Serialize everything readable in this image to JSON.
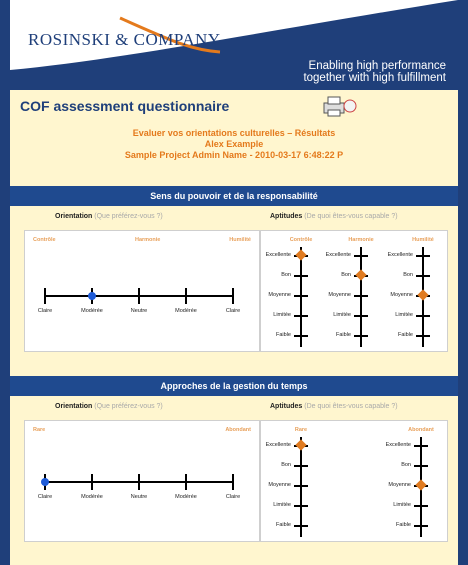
{
  "header": {
    "logo": "ROSINSKI & COMPANY",
    "tagline_line1": "Enabling high performance",
    "tagline_line2": "together with high fulfillment",
    "colors": {
      "navy": "#1f3f7a",
      "orange": "#e47a1c"
    }
  },
  "page": {
    "title": "COF assessment questionnaire",
    "print_icon": "printer-icon"
  },
  "heading": {
    "line1": "Evaluer vos orientations culturelles – Résultats",
    "line2": "Alex Example",
    "line3": "Sample Project Admin Name - 2010-03-17 6:48:22 P"
  },
  "sections": [
    {
      "title": "Sens du pouvoir et de la responsabilité",
      "orientation_label": "Orientation",
      "orientation_hint": "(Que préférez-vous ?)",
      "aptitudes_label": "Aptitudes",
      "aptitudes_hint": "(De quoi êtes-vous capable ?)",
      "scale_headers": [
        "Contrôle",
        "Harmonie",
        "Humilité"
      ],
      "scale_labels": [
        "Claire",
        "Modérée",
        "Neutre",
        "Modérée",
        "Claire"
      ],
      "orientation_value_index": 1,
      "aptitude_columns": [
        "Contrôle",
        "Harmonie",
        "Humilité"
      ],
      "aptitude_levels": [
        "Excellente",
        "Bon",
        "Moyenne",
        "Limitée",
        "Faible"
      ],
      "aptitude_values": [
        0,
        1,
        2
      ]
    },
    {
      "title": "Approches de la gestion du temps",
      "orientation_label": "Orientation",
      "orientation_hint": "(Que préférez-vous ?)",
      "aptitudes_label": "Aptitudes",
      "aptitudes_hint": "(De quoi êtes-vous capable ?)",
      "scale_headers": [
        "Rare",
        "Abondant"
      ],
      "scale_labels": [
        "Claire",
        "Modérée",
        "Neutre",
        "Modérée",
        "Claire"
      ],
      "orientation_value_index": 0,
      "aptitude_columns": [
        "Rare",
        "Abondant"
      ],
      "aptitude_levels": [
        "Excellente",
        "Bon",
        "Moyenne",
        "Limitée",
        "Faible"
      ],
      "aptitude_values": [
        0,
        2
      ]
    }
  ]
}
